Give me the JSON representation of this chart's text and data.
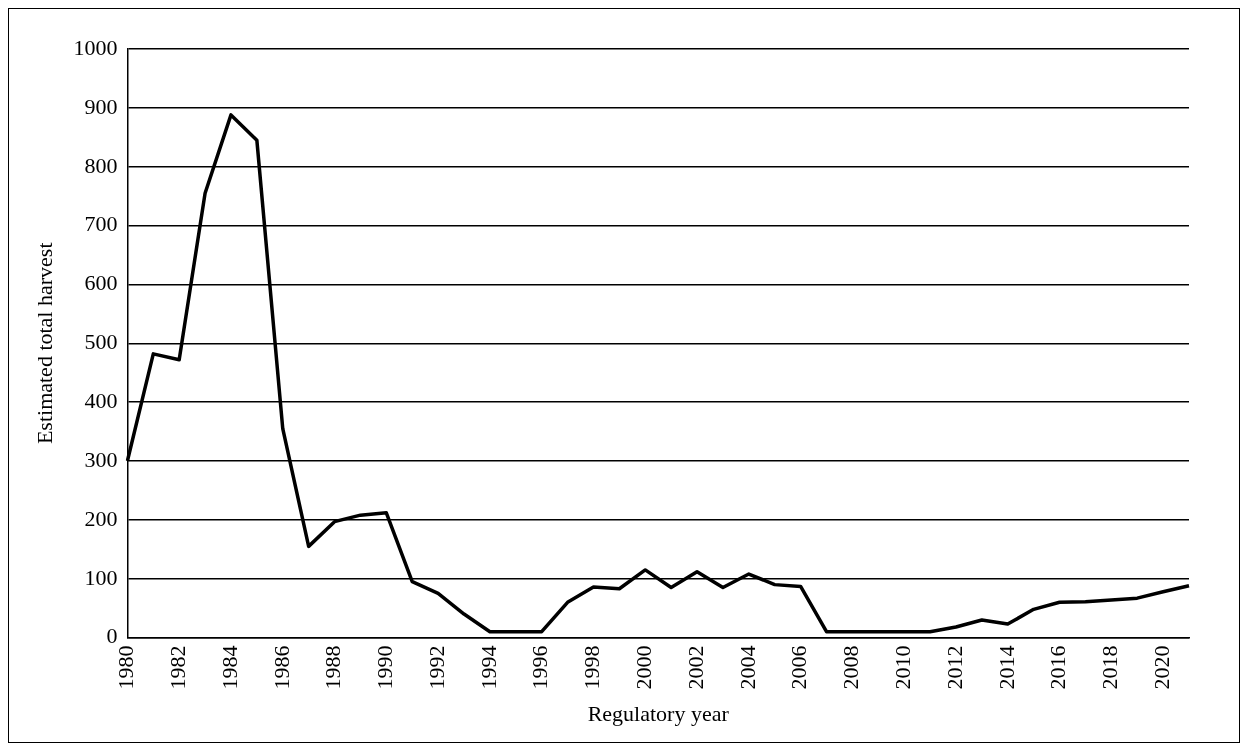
{
  "chart_data": {
    "type": "line",
    "xlabel": "Regulatory year",
    "ylabel": "Estimated total harvest",
    "categories": [
      "1980",
      null,
      "1982",
      null,
      "1984",
      null,
      "1986",
      null,
      "1988",
      null,
      "1990",
      null,
      "1992",
      null,
      "1994",
      null,
      "1996",
      null,
      "1998",
      null,
      "2000",
      null,
      "2002",
      null,
      "2004",
      null,
      "2006",
      null,
      "2008",
      null,
      "2010",
      null,
      "2012",
      null,
      "2014",
      null,
      "2016",
      null,
      "2018",
      null,
      "2020",
      null
    ],
    "series": [
      {
        "color": "#000000",
        "values": [
          300,
          482,
          472,
          755,
          888,
          845,
          355,
          155,
          197,
          208,
          212,
          95,
          75,
          40,
          10,
          10,
          10,
          60,
          86,
          83,
          115,
          85,
          112,
          85,
          108,
          90,
          87,
          10,
          10,
          10,
          10,
          10,
          18,
          30,
          23,
          48,
          60,
          61,
          64,
          67,
          78,
          88
        ]
      }
    ],
    "ylim": [
      0,
      1000
    ],
    "yticks": [
      0,
      100,
      200,
      300,
      400,
      500,
      600,
      700,
      800,
      900,
      1000
    ],
    "grid": "y",
    "legend": false,
    "marker": "none",
    "line_style": "solid"
  }
}
